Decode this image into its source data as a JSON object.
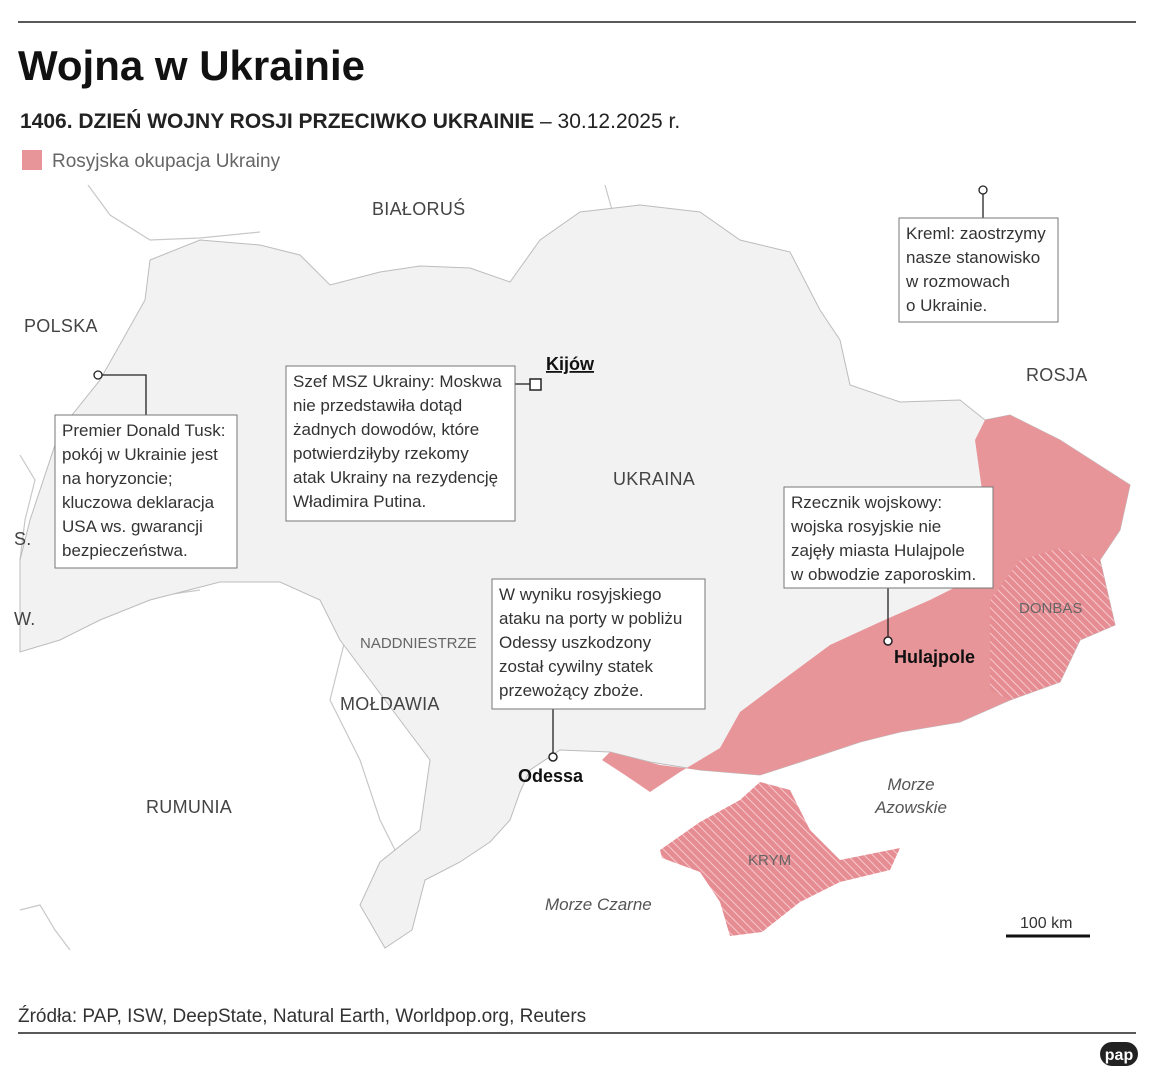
{
  "header": {
    "title": "Wojna w Ukrainie",
    "subtitle_bold": "1406. DZIEŃ WOJNY ROSJI PRZECIWKO UKRAINIE",
    "subtitle_rest": "– 30.12.2025 r."
  },
  "legend": {
    "label": "Rosyjska okupacja Ukrainy"
  },
  "map": {
    "countries": [
      "BIAŁORUŚ",
      "POLSKA",
      "ROSJA",
      "UKRAINA",
      "S.",
      "W.",
      "MOŁDAWIA",
      "RUMUNIA"
    ],
    "regions": [
      "NADDNIESTRZE",
      "DONBAS",
      "KRYM"
    ],
    "seas": [
      [
        "Morze",
        "Azowskie"
      ],
      [
        "Morze Czarne"
      ]
    ],
    "cities": [
      "Kijów",
      "Hulajpole",
      "Odessa"
    ],
    "scale": "100 km"
  },
  "callouts": [
    {
      "lines": [
        "Premier Donald Tusk:",
        "pokój w Ukrainie jest",
        "na horyzoncie;",
        "kluczowa deklaracja",
        "USA ws. gwarancji",
        "bezpieczeństwa."
      ]
    },
    {
      "lines": [
        "Szef MSZ Ukrainy: Moskwa",
        "nie przedstawiła dotąd",
        "żadnych dowodów, które",
        "potwierdziłyby rzekomy",
        "atak Ukrainy na rezydencję",
        "Władimira Putina."
      ]
    },
    {
      "lines": [
        "Kreml: zaostrzymy",
        "nasze stanowisko",
        "w rozmowach",
        "o Ukrainie."
      ]
    },
    {
      "lines": [
        "Rzecznik wojskowy:",
        "wojska rosyjskie nie",
        "zajęły miasta Hulajpole",
        "w obwodzie zaporoskim."
      ]
    },
    {
      "lines": [
        "W wyniku rosyjskiego",
        "ataku na porty w pobliżu",
        "Odessy uszkodzony",
        "został cywilny statek",
        "przewożący zboże."
      ]
    }
  ],
  "footer": {
    "sources": "Źródła: PAP, ISW, DeepState, Natural Earth, Worldpop.org, Reuters",
    "logo": "pap"
  }
}
